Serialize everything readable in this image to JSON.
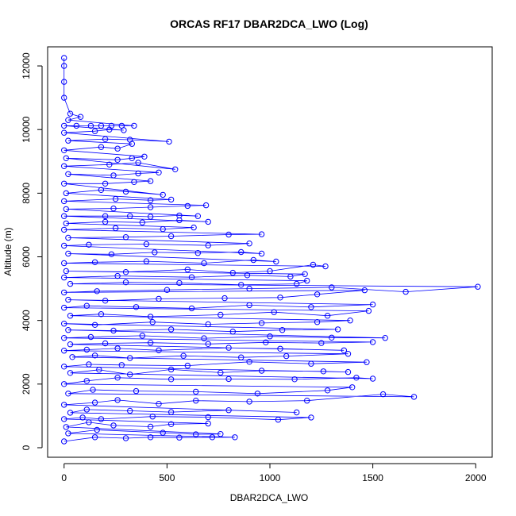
{
  "chart_data": {
    "type": "line",
    "title": "ORCAS RF17 DBAR2DCA_LWO (Log)",
    "xlabel": "DBAR2DCA_LWO",
    "ylabel": "Altitude (m)",
    "xlim": [
      -80,
      2080
    ],
    "ylim": [
      -300,
      12600
    ],
    "xticks": [
      "0",
      "500",
      "1000",
      "1500",
      "2000"
    ],
    "yticks": [
      "0",
      "2000",
      "4000",
      "6000",
      "8000",
      "10000",
      "12000"
    ],
    "xtick_values": [
      0,
      500,
      1000,
      1500,
      2000
    ],
    "ytick_values": [
      0,
      2000,
      4000,
      6000,
      8000,
      10000,
      12000
    ],
    "marker": "open-circle",
    "series": [
      {
        "color": "#0000ff",
        "points": [
          [
            0,
            200
          ],
          [
            150,
            330
          ],
          [
            300,
            300
          ],
          [
            420,
            330
          ],
          [
            560,
            320
          ],
          [
            720,
            330
          ],
          [
            830,
            330
          ],
          [
            20,
            450
          ],
          [
            160,
            560
          ],
          [
            480,
            470
          ],
          [
            640,
            420
          ],
          [
            760,
            430
          ],
          [
            10,
            650
          ],
          [
            120,
            800
          ],
          [
            240,
            700
          ],
          [
            420,
            660
          ],
          [
            520,
            740
          ],
          [
            700,
            760
          ],
          [
            0,
            900
          ],
          [
            90,
            950
          ],
          [
            180,
            900
          ],
          [
            430,
            980
          ],
          [
            700,
            960
          ],
          [
            1040,
            880
          ],
          [
            1200,
            950
          ],
          [
            30,
            1100
          ],
          [
            110,
            1200
          ],
          [
            320,
            1160
          ],
          [
            520,
            1120
          ],
          [
            800,
            1180
          ],
          [
            1130,
            1110
          ],
          [
            0,
            1350
          ],
          [
            150,
            1420
          ],
          [
            260,
            1500
          ],
          [
            460,
            1380
          ],
          [
            640,
            1480
          ],
          [
            900,
            1450
          ],
          [
            1180,
            1480
          ],
          [
            1550,
            1680
          ],
          [
            1700,
            1600
          ],
          [
            20,
            1700
          ],
          [
            140,
            1820
          ],
          [
            350,
            1780
          ],
          [
            640,
            1760
          ],
          [
            940,
            1700
          ],
          [
            1280,
            1800
          ],
          [
            1400,
            1900
          ],
          [
            0,
            2000
          ],
          [
            110,
            2100
          ],
          [
            260,
            2200
          ],
          [
            520,
            2150
          ],
          [
            800,
            2160
          ],
          [
            1120,
            2150
          ],
          [
            1420,
            2200
          ],
          [
            1500,
            2170
          ],
          [
            30,
            2350
          ],
          [
            170,
            2450
          ],
          [
            320,
            2300
          ],
          [
            520,
            2460
          ],
          [
            760,
            2360
          ],
          [
            960,
            2420
          ],
          [
            1260,
            2400
          ],
          [
            1380,
            2380
          ],
          [
            0,
            2550
          ],
          [
            120,
            2620
          ],
          [
            280,
            2600
          ],
          [
            600,
            2580
          ],
          [
            900,
            2700
          ],
          [
            1200,
            2640
          ],
          [
            1470,
            2690
          ],
          [
            40,
            2850
          ],
          [
            150,
            2900
          ],
          [
            320,
            2820
          ],
          [
            580,
            2890
          ],
          [
            860,
            2840
          ],
          [
            1080,
            2880
          ],
          [
            1380,
            2950
          ],
          [
            0,
            3050
          ],
          [
            110,
            3080
          ],
          [
            260,
            3120
          ],
          [
            460,
            3060
          ],
          [
            800,
            3140
          ],
          [
            1050,
            3110
          ],
          [
            1360,
            3060
          ],
          [
            30,
            3250
          ],
          [
            200,
            3280
          ],
          [
            420,
            3300
          ],
          [
            700,
            3260
          ],
          [
            980,
            3310
          ],
          [
            1250,
            3290
          ],
          [
            1500,
            3320
          ],
          [
            0,
            3450
          ],
          [
            130,
            3480
          ],
          [
            380,
            3520
          ],
          [
            680,
            3440
          ],
          [
            1000,
            3500
          ],
          [
            1300,
            3460
          ],
          [
            1560,
            3450
          ],
          [
            20,
            3700
          ],
          [
            240,
            3680
          ],
          [
            520,
            3720
          ],
          [
            820,
            3650
          ],
          [
            1060,
            3700
          ],
          [
            1330,
            3720
          ],
          [
            0,
            3900
          ],
          [
            150,
            3860
          ],
          [
            430,
            3950
          ],
          [
            700,
            3880
          ],
          [
            960,
            3920
          ],
          [
            1230,
            3950
          ],
          [
            1390,
            4000
          ],
          [
            30,
            4150
          ],
          [
            180,
            4200
          ],
          [
            420,
            4120
          ],
          [
            760,
            4180
          ],
          [
            1020,
            4260
          ],
          [
            1280,
            4150
          ],
          [
            1480,
            4300
          ],
          [
            0,
            4400
          ],
          [
            110,
            4460
          ],
          [
            350,
            4420
          ],
          [
            620,
            4380
          ],
          [
            900,
            4480
          ],
          [
            1200,
            4420
          ],
          [
            1500,
            4500
          ],
          [
            20,
            4650
          ],
          [
            200,
            4620
          ],
          [
            460,
            4680
          ],
          [
            780,
            4700
          ],
          [
            1050,
            4720
          ],
          [
            1230,
            4820
          ],
          [
            1460,
            4950
          ],
          [
            0,
            4880
          ],
          [
            160,
            4920
          ],
          [
            500,
            4960
          ],
          [
            900,
            5000
          ],
          [
            1300,
            5040
          ],
          [
            1660,
            4900
          ],
          [
            2010,
            5060
          ],
          [
            30,
            5150
          ],
          [
            300,
            5200
          ],
          [
            560,
            5180
          ],
          [
            860,
            5120
          ],
          [
            1130,
            5150
          ],
          [
            1180,
            5250
          ],
          [
            0,
            5350
          ],
          [
            260,
            5400
          ],
          [
            620,
            5360
          ],
          [
            890,
            5420
          ],
          [
            1100,
            5380
          ],
          [
            1170,
            5460
          ],
          [
            10,
            5550
          ],
          [
            300,
            5520
          ],
          [
            600,
            5600
          ],
          [
            820,
            5500
          ],
          [
            1000,
            5550
          ],
          [
            1210,
            5750
          ],
          [
            1270,
            5700
          ],
          [
            0,
            5800
          ],
          [
            150,
            5830
          ],
          [
            400,
            5860
          ],
          [
            680,
            5800
          ],
          [
            920,
            5900
          ],
          [
            1030,
            5850
          ],
          [
            20,
            6100
          ],
          [
            230,
            6080
          ],
          [
            440,
            6140
          ],
          [
            650,
            6120
          ],
          [
            860,
            6150
          ],
          [
            960,
            6100
          ],
          [
            0,
            6350
          ],
          [
            120,
            6380
          ],
          [
            400,
            6400
          ],
          [
            700,
            6360
          ],
          [
            900,
            6420
          ],
          [
            20,
            6600
          ],
          [
            300,
            6620
          ],
          [
            520,
            6650
          ],
          [
            800,
            6700
          ],
          [
            960,
            6710
          ],
          [
            0,
            6850
          ],
          [
            250,
            6900
          ],
          [
            480,
            6870
          ],
          [
            630,
            6920
          ],
          [
            10,
            7050
          ],
          [
            200,
            7100
          ],
          [
            380,
            7080
          ],
          [
            560,
            7150
          ],
          [
            700,
            7100
          ],
          [
            0,
            7280
          ],
          [
            200,
            7280
          ],
          [
            320,
            7280
          ],
          [
            420,
            7260
          ],
          [
            560,
            7300
          ],
          [
            650,
            7280
          ],
          [
            10,
            7500
          ],
          [
            240,
            7520
          ],
          [
            420,
            7560
          ],
          [
            600,
            7600
          ],
          [
            690,
            7620
          ],
          [
            0,
            7750
          ],
          [
            250,
            7820
          ],
          [
            420,
            7780
          ],
          [
            520,
            7800
          ],
          [
            10,
            8000
          ],
          [
            180,
            8100
          ],
          [
            300,
            8050
          ],
          [
            480,
            7950
          ],
          [
            0,
            8300
          ],
          [
            200,
            8300
          ],
          [
            340,
            8350
          ],
          [
            420,
            8380
          ],
          [
            20,
            8600
          ],
          [
            240,
            8560
          ],
          [
            360,
            8620
          ],
          [
            460,
            8650
          ],
          [
            0,
            8850
          ],
          [
            220,
            8900
          ],
          [
            360,
            8960
          ],
          [
            540,
            8750
          ],
          [
            10,
            9100
          ],
          [
            260,
            9050
          ],
          [
            330,
            9100
          ],
          [
            390,
            9150
          ],
          [
            0,
            9350
          ],
          [
            180,
            9450
          ],
          [
            260,
            9400
          ],
          [
            330,
            9550
          ],
          [
            20,
            9650
          ],
          [
            200,
            9700
          ],
          [
            320,
            9680
          ],
          [
            510,
            9620
          ],
          [
            0,
            9900
          ],
          [
            150,
            9950
          ],
          [
            220,
            10000
          ],
          [
            290,
            9980
          ],
          [
            0,
            10120
          ],
          [
            60,
            10120
          ],
          [
            130,
            10120
          ],
          [
            180,
            10120
          ],
          [
            230,
            10120
          ],
          [
            280,
            10120
          ],
          [
            340,
            10120
          ],
          [
            20,
            10300
          ],
          [
            80,
            10400
          ],
          [
            30,
            10500
          ],
          [
            0,
            11000
          ],
          [
            0,
            11500
          ],
          [
            0,
            12000
          ],
          [
            0,
            12250
          ]
        ]
      }
    ]
  }
}
